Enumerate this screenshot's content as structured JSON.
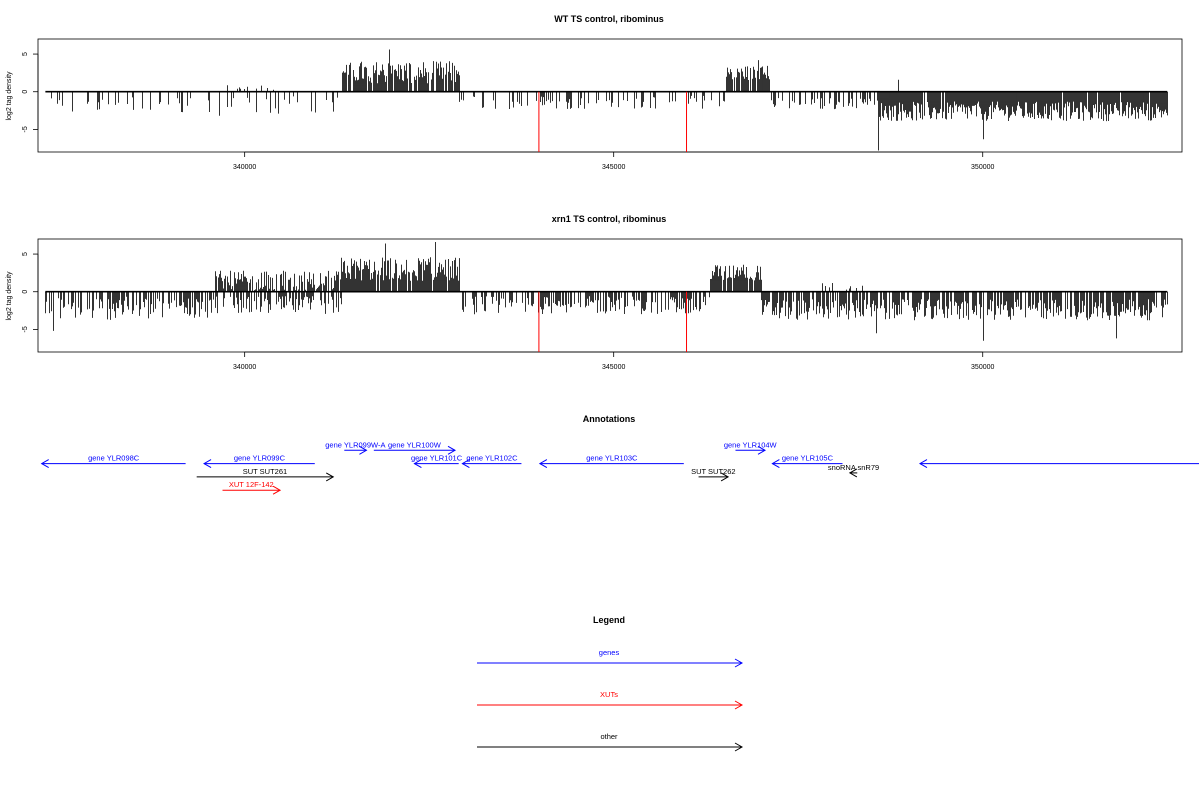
{
  "panels": [
    {
      "title": "WT TS control, ribominus",
      "ylabel": "log2 tag density",
      "yticks": [
        -5,
        0,
        5
      ],
      "ylim": [
        -8,
        7
      ],
      "xlim": [
        337200,
        352700
      ],
      "xticks": [
        340000,
        345000,
        350000
      ],
      "red_marks": [
        {
          "x": 343980,
          "y": -8
        },
        {
          "x": 345980,
          "y": -8
        }
      ],
      "segments": [
        {
          "from": 337300,
          "to": 341300,
          "level": -1.8,
          "var": 1.2,
          "density": 0.22
        },
        {
          "from": 339700,
          "to": 340500,
          "level": 0.0,
          "var": 0.9,
          "density": 0.15,
          "pos": true
        },
        {
          "from": 341300,
          "to": 342900,
          "level": 2.6,
          "var": 1.5,
          "density": 0.85,
          "pos": true
        },
        {
          "from": 342900,
          "to": 346500,
          "level": -1.4,
          "var": 0.9,
          "density": 0.25
        },
        {
          "from": 346500,
          "to": 347100,
          "level": 2.5,
          "var": 1.0,
          "density": 0.8,
          "pos": true
        },
        {
          "from": 347100,
          "to": 348600,
          "level": -1.6,
          "var": 0.8,
          "density": 0.35
        },
        {
          "from": 348600,
          "to": 352500,
          "level": -2.6,
          "var": 1.3,
          "density": 0.95
        }
      ],
      "spikes": [
        {
          "x": 341950,
          "y": 5.6
        },
        {
          "x": 346950,
          "y": 4.2
        },
        {
          "x": 348580,
          "y": -7.8
        },
        {
          "x": 350000,
          "y": -6.3
        },
        {
          "x": 348850,
          "y": 1.6
        },
        {
          "x": 339650,
          "y": -3.2
        }
      ]
    },
    {
      "title": "xrn1 TS control, ribominus",
      "ylabel": "log2 tag density",
      "yticks": [
        -5,
        0,
        5
      ],
      "ylim": [
        -8,
        7
      ],
      "xlim": [
        337200,
        352700
      ],
      "xticks": [
        340000,
        345000,
        350000
      ],
      "red_marks": [
        {
          "x": 343980,
          "y": -8
        },
        {
          "x": 345980,
          "y": -8
        }
      ],
      "segments": [
        {
          "from": 337300,
          "to": 339600,
          "level": -2.2,
          "var": 1.6,
          "density": 0.55
        },
        {
          "from": 339600,
          "to": 341300,
          "level": 1.2,
          "var": 1.6,
          "density": 0.8,
          "pos": true
        },
        {
          "from": 339600,
          "to": 341300,
          "level": -1.8,
          "var": 1.2,
          "density": 0.6
        },
        {
          "from": 341300,
          "to": 342900,
          "level": 3.0,
          "var": 1.6,
          "density": 0.95,
          "pos": true
        },
        {
          "from": 342900,
          "to": 346300,
          "level": -1.8,
          "var": 1.2,
          "density": 0.55
        },
        {
          "from": 346300,
          "to": 347000,
          "level": 2.6,
          "var": 1.1,
          "density": 0.9,
          "pos": true
        },
        {
          "from": 347000,
          "to": 352500,
          "level": -2.4,
          "var": 1.4,
          "density": 0.75
        },
        {
          "from": 347800,
          "to": 348400,
          "level": 0.6,
          "var": 0.6,
          "density": 0.2,
          "pos": true
        }
      ],
      "spikes": [
        {
          "x": 341900,
          "y": 6.4
        },
        {
          "x": 342580,
          "y": 6.6
        },
        {
          "x": 348550,
          "y": -5.5
        },
        {
          "x": 350000,
          "y": -6.5
        },
        {
          "x": 351800,
          "y": -6.2
        },
        {
          "x": 337400,
          "y": -5.2
        }
      ]
    }
  ],
  "annotations": {
    "title": "Annotations",
    "items": [
      {
        "label": "gene YLR098C",
        "color": "#0000ff",
        "x1": 337250,
        "x2": 339200,
        "row": 2,
        "dir": "left"
      },
      {
        "label": "gene YLR099C",
        "color": "#0000ff",
        "x1": 339450,
        "x2": 340950,
        "row": 2,
        "dir": "left"
      },
      {
        "label": "gene YLR099W-A",
        "color": "#0000ff",
        "x1": 341350,
        "x2": 341650,
        "row": 1,
        "dir": "right"
      },
      {
        "label": "gene YLR100W",
        "color": "#0000ff",
        "x1": 341750,
        "x2": 342850,
        "row": 1,
        "dir": "right"
      },
      {
        "label": "gene YLR101C",
        "color": "#0000ff",
        "x1": 342300,
        "x2": 342900,
        "row": 2,
        "dir": "left"
      },
      {
        "label": "gene YLR102C",
        "color": "#0000ff",
        "x1": 342950,
        "x2": 343750,
        "row": 2,
        "dir": "left"
      },
      {
        "label": "gene YLR103C",
        "color": "#0000ff",
        "x1": 344000,
        "x2": 345950,
        "row": 2,
        "dir": "left"
      },
      {
        "label": "gene YLR104W",
        "color": "#0000ff",
        "x1": 346650,
        "x2": 347050,
        "row": 1,
        "dir": "right"
      },
      {
        "label": "gene YLR105C",
        "color": "#0000ff",
        "x1": 347150,
        "x2": 348100,
        "row": 2,
        "dir": "left"
      },
      {
        "label": "",
        "color": "#0000ff",
        "x1": 349150,
        "x2": 353000,
        "row": 2,
        "dir": "left"
      },
      {
        "label": "SUT SUT261",
        "color": "#000000",
        "x1": 339350,
        "x2": 341200,
        "row": 3,
        "dir": "right"
      },
      {
        "label": "SUT SUT262",
        "color": "#000000",
        "x1": 346150,
        "x2": 346550,
        "row": 3,
        "dir": "right"
      },
      {
        "label": "snoRNA snR79",
        "color": "#000000",
        "x1": 348200,
        "x2": 348300,
        "row": 2.7,
        "dir": "left"
      },
      {
        "label": "XUT 12F-142",
        "color": "#ff0000",
        "x1": 339700,
        "x2": 340480,
        "row": 4,
        "dir": "right"
      }
    ]
  },
  "legend": {
    "title": "Legend",
    "items": [
      {
        "label": "genes",
        "color": "#0000ff"
      },
      {
        "label": "XUTs",
        "color": "#ff0000"
      },
      {
        "label": "other",
        "color": "#000000"
      }
    ]
  }
}
